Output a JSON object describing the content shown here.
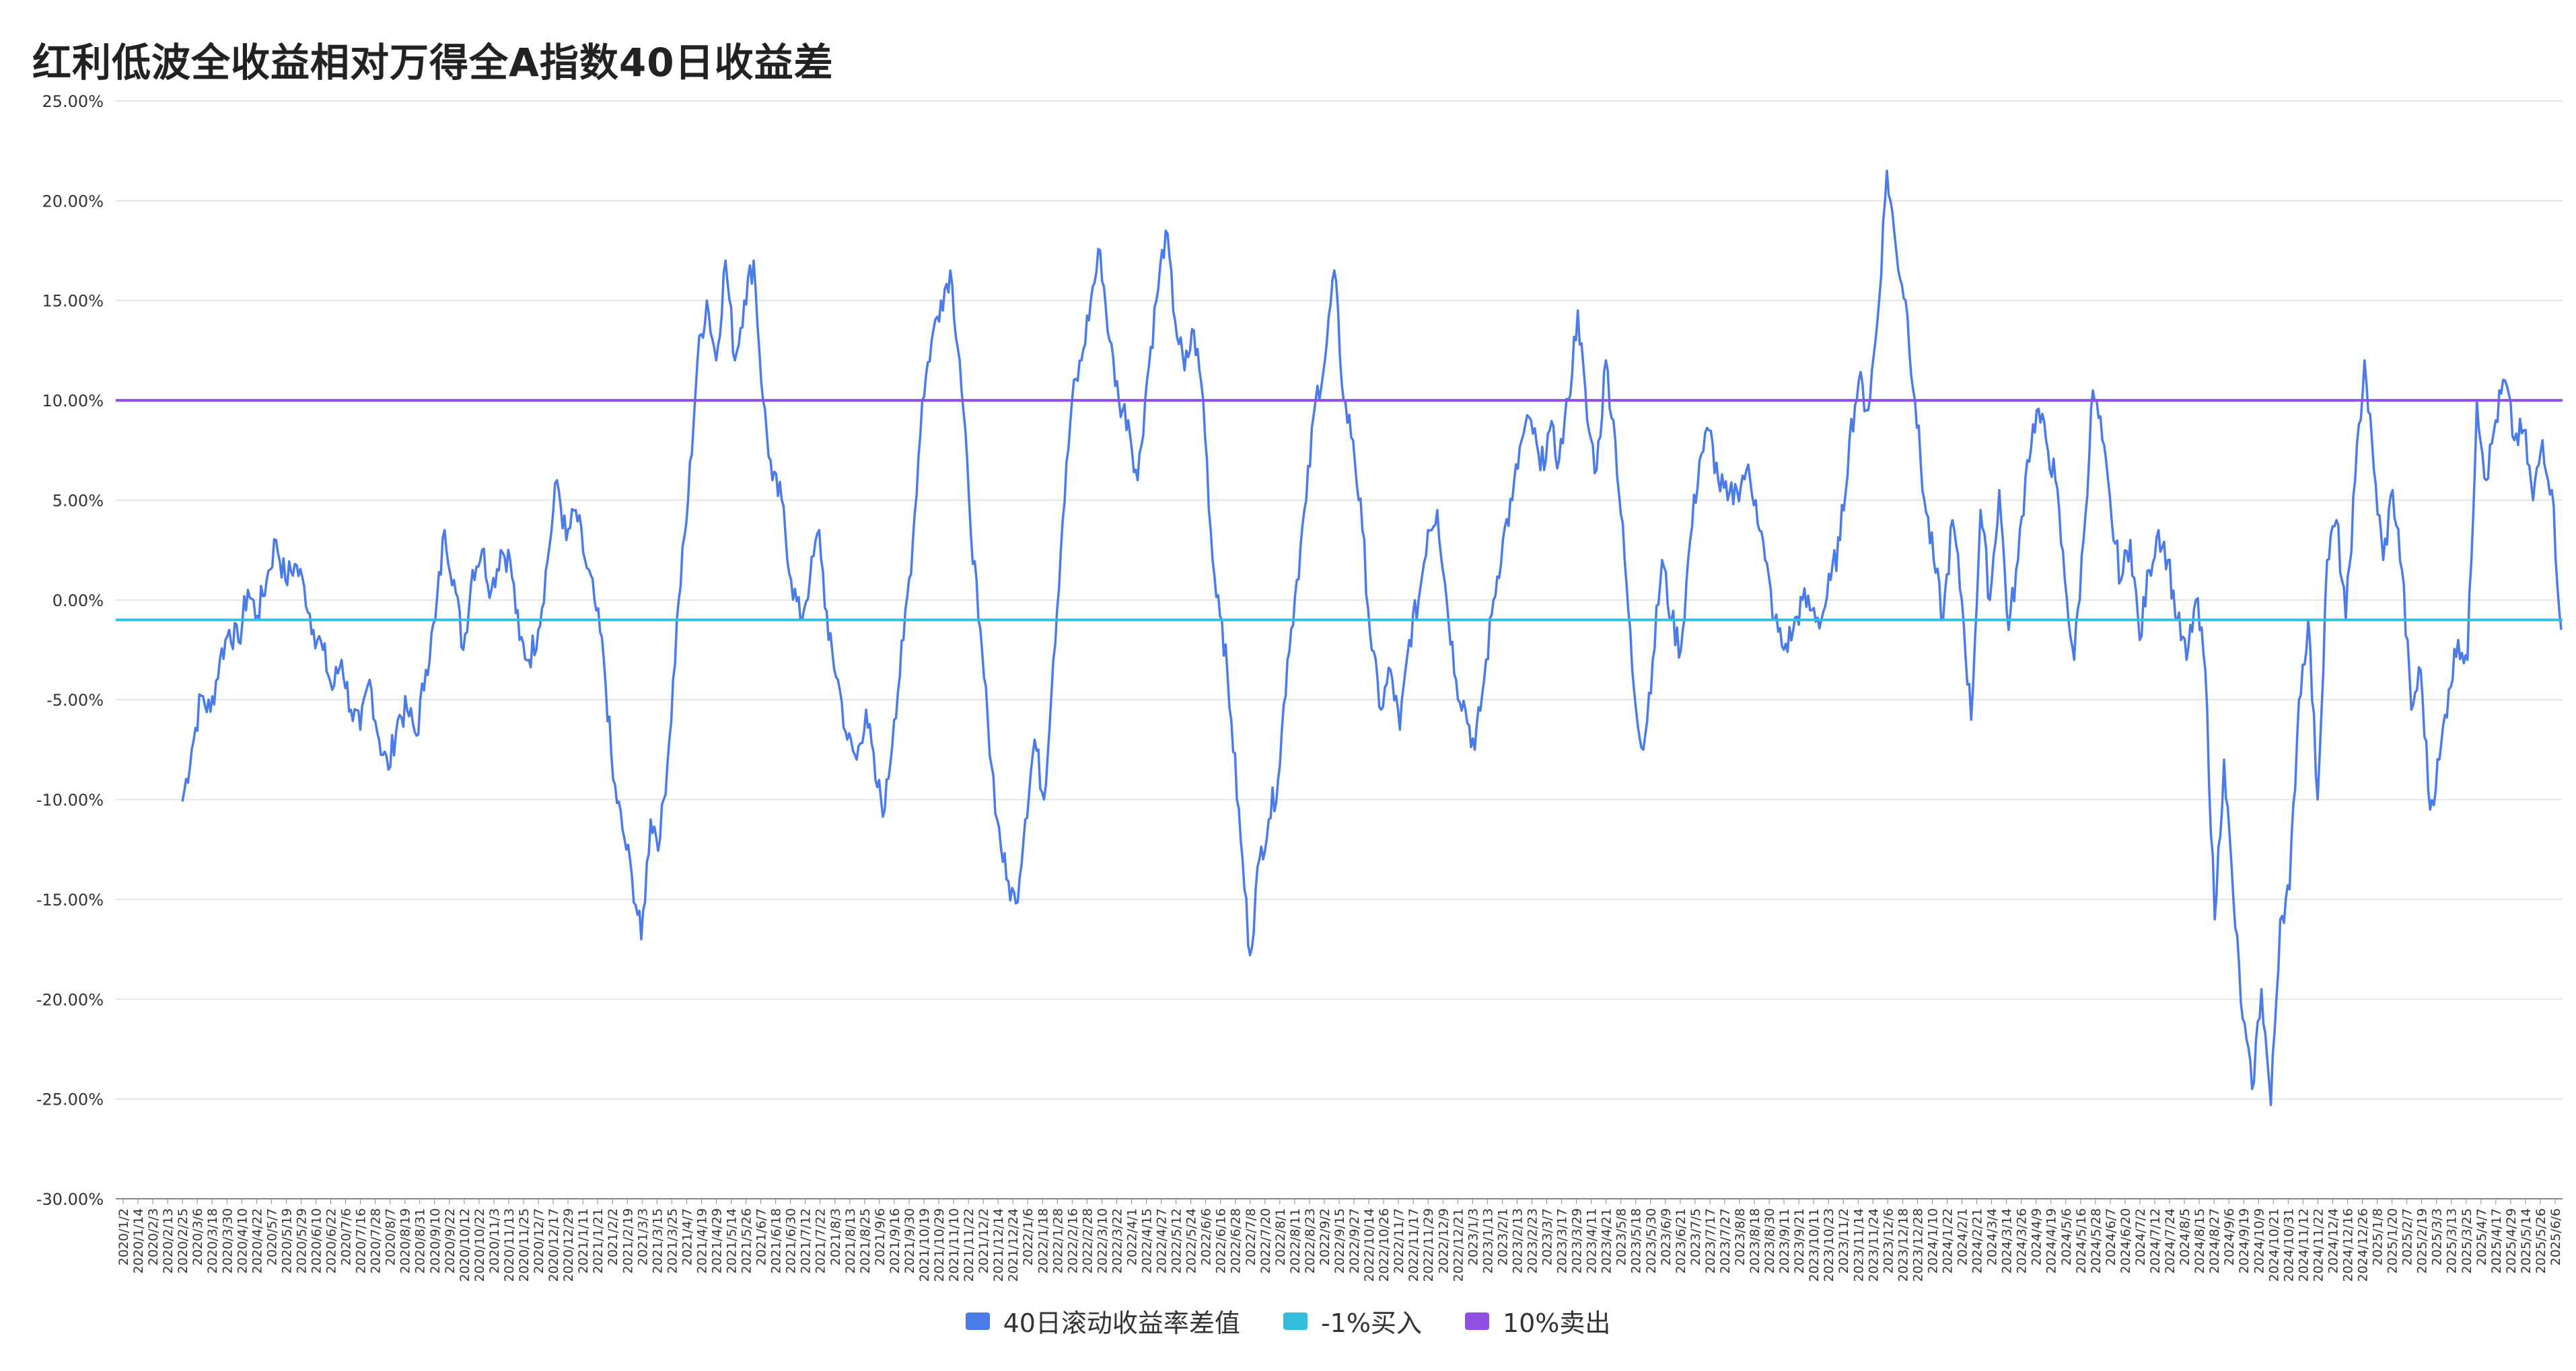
{
  "title": "红利低波全收益相对万得全A指数40日收益差",
  "colors": {
    "series": "#4a7be8",
    "buy_line": "#35bde0",
    "sell_line": "#8f4fe3",
    "grid": "#e4e4e4"
  },
  "legend": {
    "series_label": "40日滚动收益率差值",
    "buy_label": "-1%买入",
    "sell_label": "10%卖出"
  },
  "chart_data": {
    "type": "line",
    "title": "红利低波全收益相对万得全A指数40日收益差",
    "ylim": [
      -30,
      25
    ],
    "y_ticks": [
      25,
      20,
      15,
      10,
      5,
      0,
      -5,
      -10,
      -15,
      -20,
      -25,
      -30
    ],
    "y_tick_labels": [
      "25.00%",
      "20.00%",
      "15.00%",
      "10.00%",
      "5.00%",
      "0.00%",
      "-5.00%",
      "-10.00%",
      "-15.00%",
      "-20.00%",
      "-25.00%",
      "-30.00%"
    ],
    "x_tick_labels": [
      "2020/1/2",
      "2020/1/14",
      "2020/2/3",
      "2020/2/13",
      "2020/2/25",
      "2020/3/6",
      "2020/3/18",
      "2020/3/30",
      "2020/4/10",
      "2020/4/22",
      "2020/5/7",
      "2020/5/19",
      "2020/5/29",
      "2020/6/10",
      "2020/6/22",
      "2020/7/6",
      "2020/7/16",
      "2020/7/28",
      "2020/8/7",
      "2020/8/19",
      "2020/8/31",
      "2020/9/10",
      "2020/9/22",
      "2020/10/12",
      "2020/10/22",
      "2020/11/3",
      "2020/11/13",
      "2020/11/25",
      "2020/12/7",
      "2020/12/17",
      "2020/12/29",
      "2021/1/11",
      "2021/1/21",
      "2021/2/2",
      "2021/2/19",
      "2021/3/3",
      "2021/3/15",
      "2021/3/25",
      "2021/4/7",
      "2021/4/19",
      "2021/4/29",
      "2021/5/14",
      "2021/5/26",
      "2021/6/7",
      "2021/6/18",
      "2021/6/30",
      "2021/7/12",
      "2021/7/22",
      "2021/8/3",
      "2021/8/13",
      "2021/8/25",
      "2021/9/6",
      "2021/9/16",
      "2021/9/30",
      "2021/10/19",
      "2021/10/29",
      "2021/11/10",
      "2021/11/22",
      "2021/12/2",
      "2021/12/14",
      "2021/12/24",
      "2022/1/6",
      "2022/1/18",
      "2022/1/28",
      "2022/2/16",
      "2022/2/28",
      "2022/3/10",
      "2022/3/22",
      "2022/4/1",
      "2022/4/15",
      "2022/4/27",
      "2022/5/12",
      "2022/5/24",
      "2022/6/6",
      "2022/6/16",
      "2022/6/28",
      "2022/7/8",
      "2022/7/20",
      "2022/8/1",
      "2022/8/11",
      "2022/8/23",
      "2022/9/2",
      "2022/9/15",
      "2022/9/27",
      "2022/10/14",
      "2022/10/26",
      "2022/11/7",
      "2022/11/17",
      "2022/11/29",
      "2022/12/9",
      "2022/12/21",
      "2023/1/3",
      "2023/1/13",
      "2023/2/1",
      "2023/2/13",
      "2023/2/23",
      "2023/3/7",
      "2023/3/17",
      "2023/3/29",
      "2023/4/11",
      "2023/4/21",
      "2023/5/8",
      "2023/5/18",
      "2023/5/30",
      "2023/6/9",
      "2023/6/21",
      "2023/7/5",
      "2023/7/17",
      "2023/7/27",
      "2023/8/8",
      "2023/8/18",
      "2023/8/30",
      "2023/9/11",
      "2023/9/21",
      "2023/10/11",
      "2023/10/23",
      "2023/11/2",
      "2023/11/14",
      "2023/11/24",
      "2023/12/6",
      "2023/12/18",
      "2023/12/28",
      "2024/1/10",
      "2024/1/22",
      "2024/2/1",
      "2024/2/21",
      "2024/3/4",
      "2024/3/14",
      "2024/3/26",
      "2024/4/9",
      "2024/4/19",
      "2024/5/6",
      "2024/5/16",
      "2024/5/28",
      "2024/6/7",
      "2024/6/20",
      "2024/7/2",
      "2024/7/12",
      "2024/7/24",
      "2024/8/5",
      "2024/8/15",
      "2024/8/27",
      "2024/9/6",
      "2024/9/19",
      "2024/10/9",
      "2024/10/21",
      "2024/10/31",
      "2024/11/12",
      "2024/11/22",
      "2024/12/4",
      "2024/12/16",
      "2024/12/26",
      "2025/1/8",
      "2025/1/20",
      "2025/2/7",
      "2025/2/19",
      "2025/3/3",
      "2025/3/13",
      "2025/3/25",
      "2025/4/7",
      "2025/4/17",
      "2025/4/29",
      "2025/5/14",
      "2025/5/26",
      "2025/6/6"
    ],
    "series": [
      {
        "name": "40日滚动收益率差值",
        "x_start": "2020/3/2",
        "x_end": "2025/6/6",
        "anchors": [
          -10.1,
          -7.5,
          -4.8,
          -5.6,
          -3.0,
          -1.5,
          -2.1,
          0.5,
          -0.8,
          1.0,
          3.0,
          1.0,
          1.8,
          0.7,
          -1.5,
          -2.5,
          -4.5,
          -3.0,
          -5.5,
          -6.5,
          -4.0,
          -7.0,
          -8.5,
          -6.0,
          -5.5,
          -6.8,
          -3.5,
          -1.0,
          3.5,
          1.0,
          -2.5,
          1.5,
          2.5,
          0.5,
          2.5,
          2.0,
          -2.0,
          -3.0,
          -1.5,
          2.0,
          6.0,
          3.0,
          4.5,
          2.0,
          0.0,
          -3.0,
          -9.0,
          -11.5,
          -13.8,
          -17.0,
          -11.0,
          -12.0,
          -7.0,
          0.0,
          5.0,
          12.0,
          15.0,
          12.0,
          17.0,
          12.0,
          15.0,
          17.0,
          10.0,
          6.0,
          5.0,
          1.0,
          -1.0,
          1.0,
          3.5,
          -2.0,
          -4.0,
          -7.0,
          -8.0,
          -5.5,
          -9.0,
          -10.5,
          -6.0,
          -2.0,
          3.0,
          10.0,
          13.0,
          15.0,
          16.5,
          12.0,
          5.0,
          -1.0,
          -6.0,
          -11.0,
          -14.0,
          -15.2,
          -11.0,
          -7.0,
          -10.0,
          -3.0,
          4.0,
          10.0,
          12.0,
          15.0,
          17.5,
          13.0,
          10.0,
          9.0,
          6.0,
          11.0,
          15.0,
          18.5,
          14.0,
          11.5,
          13.5,
          10.0,
          2.0,
          -1.0,
          -6.0,
          -12.0,
          -17.8,
          -13.0,
          -11.0,
          -9.0,
          -3.0,
          1.0,
          5.0,
          10.0,
          12.0,
          16.5,
          10.0,
          8.0,
          3.5,
          -2.5,
          -5.5,
          -3.5,
          -6.5,
          -2.0,
          0.0,
          3.5,
          4.5,
          0.0,
          -4.0,
          -5.5,
          -7.5,
          -4.0,
          0.0,
          3.0,
          5.0,
          8.0,
          9.0,
          6.5,
          8.5,
          7.0,
          10.0,
          14.5,
          9.0,
          6.5,
          12.0,
          8.0,
          2.0,
          -4.5,
          -7.5,
          -3.0,
          2.0,
          -1.0,
          -2.5,
          3.0,
          7.0,
          8.5,
          6.0,
          5.0,
          5.5,
          6.5,
          5.0,
          2.0,
          -1.0,
          -2.5,
          -1.5,
          0.0,
          -0.5,
          -1.0,
          1.0,
          3.0,
          8.0,
          11.0,
          9.5,
          14.0,
          21.5,
          17.5,
          15.0,
          10.0,
          5.0,
          2.0,
          -1.0,
          4.0,
          0.0,
          -6.0,
          4.5,
          0.0,
          5.5,
          -1.5,
          2.0,
          7.0,
          9.5,
          8.0,
          6.0,
          1.0,
          -3.0,
          3.0,
          10.5,
          8.0,
          4.0,
          1.0,
          3.0,
          -2.0,
          1.5,
          3.5,
          2.0,
          -1.0,
          -3.0,
          0.0,
          -3.5,
          -16.0,
          -8.0,
          -15.0,
          -21.0,
          -24.5,
          -19.5,
          -25.3,
          -16.0,
          -14.5,
          -5.0,
          -1.0,
          -10.0,
          2.0,
          4.0,
          -1.0,
          6.0,
          12.0,
          6.5,
          2.0,
          5.5,
          1.5,
          -5.5,
          -3.5,
          -10.5,
          -8.0,
          -4.5,
          -2.0,
          -3.0,
          10.0,
          6.0,
          9.0,
          11.0,
          8.0,
          8.5,
          5.0,
          8.0,
          5.5,
          -1.5
        ]
      },
      {
        "name": "-1%买入",
        "value": -1
      },
      {
        "name": "10%卖出",
        "value": 10
      }
    ],
    "grid": true,
    "legend_position": "bottom-center"
  }
}
